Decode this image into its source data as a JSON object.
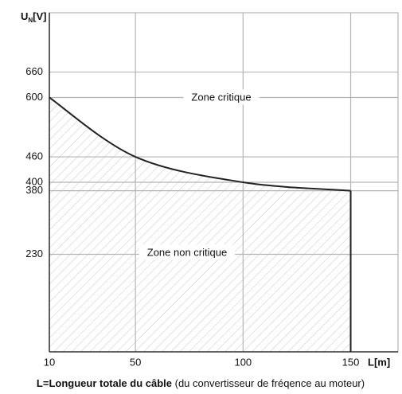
{
  "chart_data": {
    "type": "line",
    "y_label": {
      "main": "U",
      "sub": "N",
      "unit": "[V]"
    },
    "x_label": "L[m]",
    "caption": {
      "bold": "L=Longueur totale du câble",
      "rest": " (du convertisseur de fréqence au moteur)"
    },
    "annotations": [
      "Zone critique",
      "Zone non critique"
    ],
    "x": [
      10,
      50,
      100,
      150
    ],
    "series": [
      {
        "name": "U",
        "color": "#222222",
        "values": [
          600,
          460,
          400,
          380
        ]
      }
    ],
    "xlim": [
      10,
      172
    ],
    "ylim": [
      0,
      800
    ],
    "xticks": [
      10,
      50,
      100,
      150
    ],
    "yticks": [
      230,
      380,
      400,
      460,
      600,
      660
    ],
    "grid": true
  }
}
